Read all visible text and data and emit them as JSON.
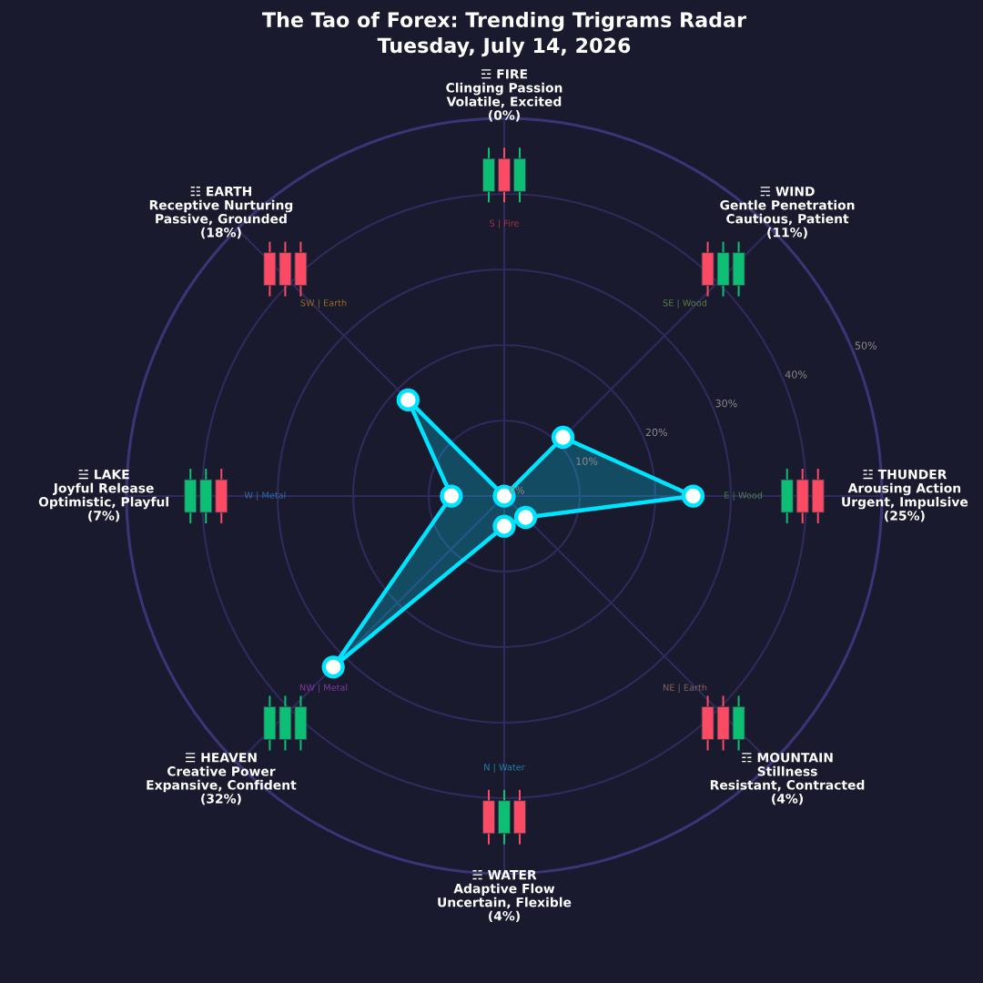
{
  "chart_data": {
    "type": "radar",
    "title": "The Tao of Forex: Trending Trigrams Radar",
    "subtitle": "Tuesday, July 14, 2026",
    "categories": [
      "☲ FIRE\nClinging Passion\nVolatile, Excited\n(0%)",
      "☴ WIND\nGentle Penetration\nCautious, Patient\n(11%)",
      "☳ THUNDER\nArousing Action\nUrgent, Impulsive\n(25%)",
      "☶ MOUNTAIN\nStillness\nResistant, Contracted\n(4%)",
      "☵ WATER\nAdaptive Flow\nUncertain, Flexible\n(4%)",
      "☰ HEAVEN\nCreative Power\nExpansive, Confident\n(32%)",
      "☱ LAKE\nJoyful Release\nOptimistic, Playful\n(7%)",
      "☷ EARTH\nReceptive Nurturing\nPassive, Grounded\n(18%)"
    ],
    "series": [
      {
        "color": "#00e5ff",
        "values": [
          0,
          11,
          25,
          4,
          4,
          32,
          7,
          18
        ]
      }
    ],
    "ylim": [
      0,
      50
    ],
    "yticks": [
      {
        "value": 0,
        "label": "0%"
      },
      {
        "value": 10,
        "label": "10%"
      },
      {
        "value": 20,
        "label": "20%"
      },
      {
        "value": 30,
        "label": "30%"
      },
      {
        "value": 40,
        "label": "40%"
      },
      {
        "value": 50,
        "label": "50%"
      }
    ],
    "grid": true,
    "marker": "circle",
    "line_style": "solid",
    "annotations": [
      "S | Fire",
      "SE | Wood",
      "E | Wood",
      "NE | Earth",
      "N | Water",
      "NW | Metal",
      "W | Metal",
      "SW | Earth"
    ]
  }
}
